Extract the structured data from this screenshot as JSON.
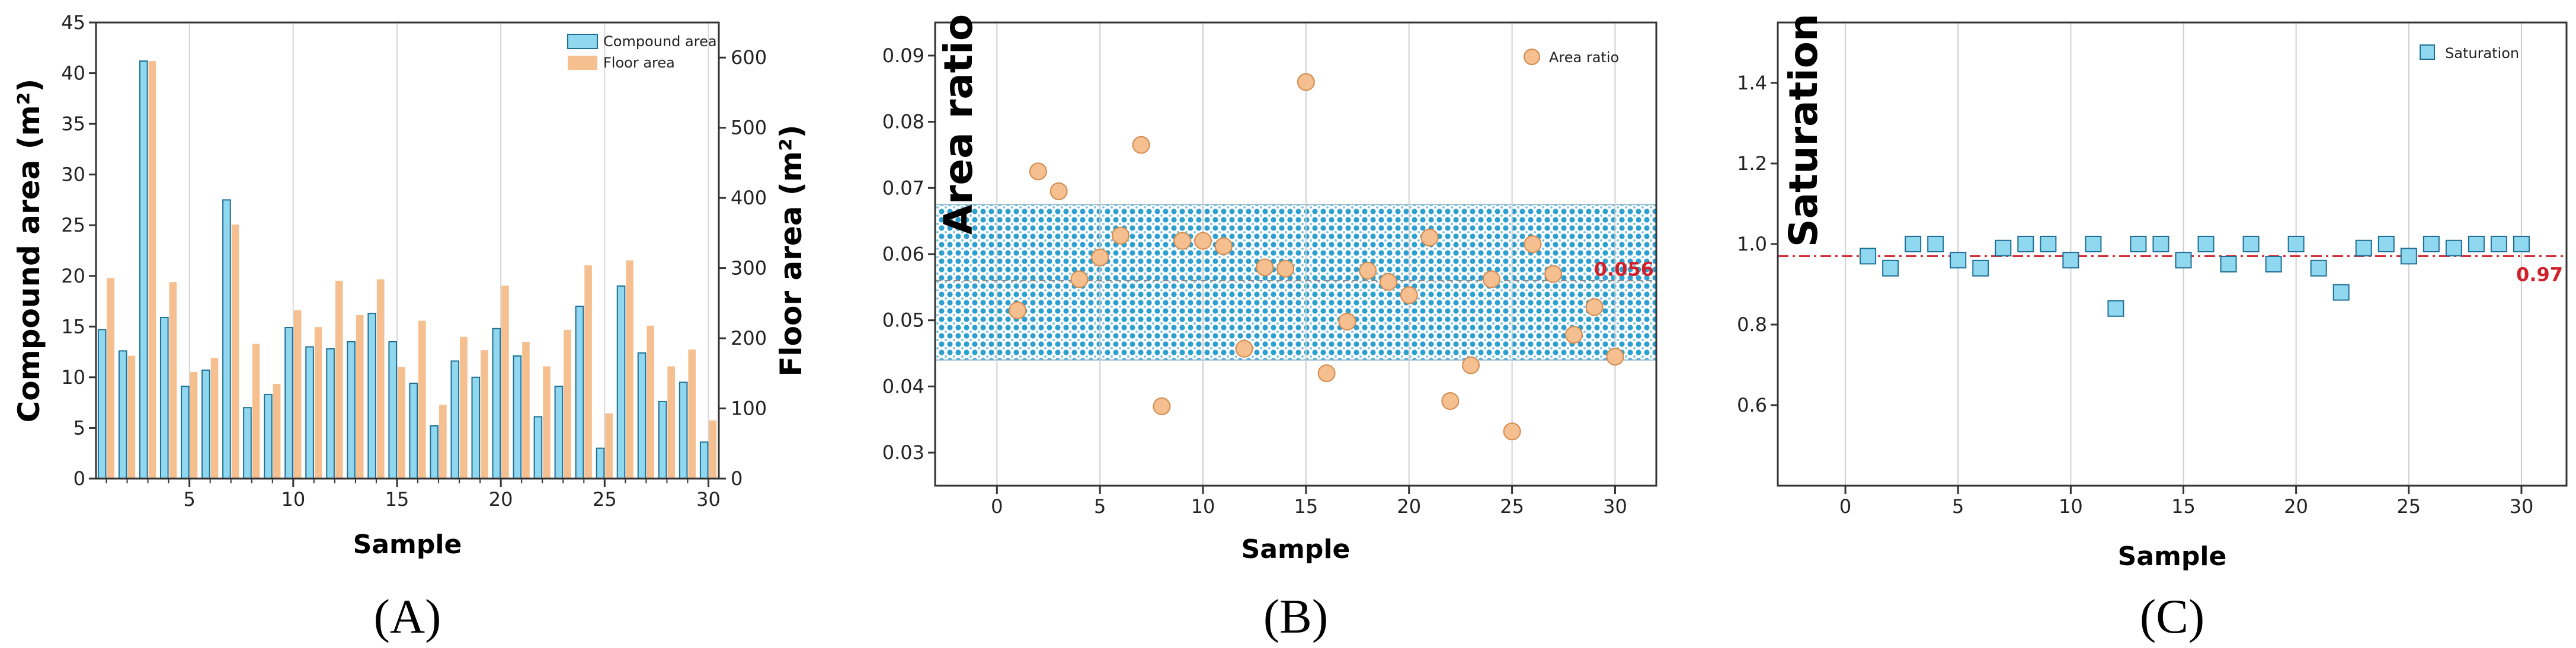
{
  "chart_data": [
    {
      "type": "bar",
      "panel_label": "(A)",
      "xlabel": "Sample",
      "ylabel": "Compound area (m²)",
      "ylabel_right": "Floor area (m²)",
      "ylim": [
        0,
        45
      ],
      "ylim_right": [
        0,
        650
      ],
      "x": [
        1,
        2,
        3,
        4,
        5,
        6,
        7,
        8,
        9,
        10,
        11,
        12,
        13,
        14,
        15,
        16,
        17,
        18,
        19,
        20,
        21,
        22,
        23,
        24,
        25,
        26,
        27,
        28,
        29,
        30
      ],
      "x_ticks": [
        "5",
        "10",
        "15",
        "20",
        "25",
        "30"
      ],
      "y_ticks": [
        "0",
        "5",
        "10",
        "15",
        "20",
        "25",
        "30",
        "35",
        "40",
        "45"
      ],
      "y_ticks_right": [
        "0",
        "100",
        "200",
        "300",
        "400",
        "500",
        "600"
      ],
      "series": [
        {
          "name": "Compound area",
          "axis": "left",
          "color": "#8fd8f0",
          "values": [
            14.7,
            12.6,
            41.2,
            15.9,
            9.1,
            10.7,
            27.5,
            7.0,
            8.3,
            14.9,
            13.0,
            12.8,
            13.5,
            16.3,
            13.5,
            9.4,
            5.2,
            11.6,
            10.0,
            14.8,
            12.1,
            6.1,
            9.1,
            17.0,
            3.0,
            19.0,
            12.4,
            7.6,
            9.5,
            3.6
          ]
        },
        {
          "name": "Floor area",
          "axis": "right",
          "color": "#f6bf8f",
          "values": [
            286,
            175,
            595,
            280,
            152,
            172,
            362,
            192,
            135,
            240,
            216,
            282,
            233,
            284,
            159,
            225,
            105,
            202,
            183,
            275,
            195,
            160,
            212,
            304,
            93,
            311,
            218,
            160,
            184,
            83
          ]
        }
      ],
      "legend": [
        "Compound area",
        "Floor area"
      ],
      "legend_position": "top-right"
    },
    {
      "type": "scatter",
      "panel_label": "(B)",
      "xlabel": "Sample",
      "ylabel": "Area ratio",
      "xlim": [
        -3,
        32
      ],
      "ylim": [
        0.025,
        0.095
      ],
      "x_ticks": [
        "0",
        "5",
        "10",
        "15",
        "20",
        "25",
        "30"
      ],
      "y_ticks": [
        "0.03",
        "0.04",
        "0.05",
        "0.06",
        "0.07",
        "0.08",
        "0.09"
      ],
      "series": [
        {
          "name": "Area ratio",
          "color": "#f6bf8f",
          "x": [
            1,
            2,
            3,
            4,
            5,
            6,
            7,
            8,
            9,
            10,
            11,
            12,
            13,
            14,
            15,
            16,
            17,
            18,
            19,
            20,
            21,
            22,
            23,
            24,
            25,
            26,
            27,
            28,
            29,
            30
          ],
          "y": [
            0.0515,
            0.0725,
            0.0695,
            0.0562,
            0.0595,
            0.0628,
            0.0765,
            0.037,
            0.062,
            0.062,
            0.0612,
            0.0457,
            0.058,
            0.0578,
            0.086,
            0.042,
            0.0498,
            0.0575,
            0.0558,
            0.0538,
            0.0625,
            0.0378,
            0.0432,
            0.0562,
            0.0332,
            0.0615,
            0.057,
            0.0478,
            0.052,
            0.0445
          ]
        }
      ],
      "reference_line": {
        "value": 0.056,
        "label": "0.056",
        "color": "#d0202a"
      },
      "band": {
        "from": 0.044,
        "to": 0.0675
      },
      "legend": [
        "Area ratio"
      ],
      "legend_position": "top-right"
    },
    {
      "type": "scatter",
      "panel_label": "(C)",
      "xlabel": "Sample",
      "ylabel": "Saturation",
      "xlim": [
        -3,
        32
      ],
      "ylim": [
        0.4,
        1.55
      ],
      "x_ticks": [
        "0",
        "5",
        "10",
        "15",
        "20",
        "25",
        "30"
      ],
      "y_ticks": [
        "0.6",
        "0.8",
        "1.0",
        "1.2",
        "1.4"
      ],
      "series": [
        {
          "name": "Saturation",
          "color": "#8fd8f0",
          "x": [
            1,
            2,
            3,
            4,
            5,
            6,
            7,
            8,
            9,
            10,
            11,
            12,
            13,
            14,
            15,
            16,
            17,
            18,
            19,
            20,
            21,
            22,
            23,
            24,
            25,
            26,
            27,
            28,
            29,
            30
          ],
          "y": [
            0.97,
            0.94,
            1.0,
            1.0,
            0.96,
            0.94,
            0.99,
            1.0,
            1.0,
            0.96,
            1.0,
            0.84,
            1.0,
            1.0,
            0.96,
            1.0,
            0.95,
            1.0,
            0.95,
            1.0,
            0.94,
            0.88,
            0.99,
            1.0,
            0.97,
            1.0,
            0.99,
            1.0,
            1.0,
            1.0
          ]
        }
      ],
      "reference_line": {
        "value": 0.97,
        "label": "0.97",
        "color": "#d0202a"
      },
      "legend": [
        "Saturation"
      ],
      "legend_position": "top-right"
    }
  ]
}
